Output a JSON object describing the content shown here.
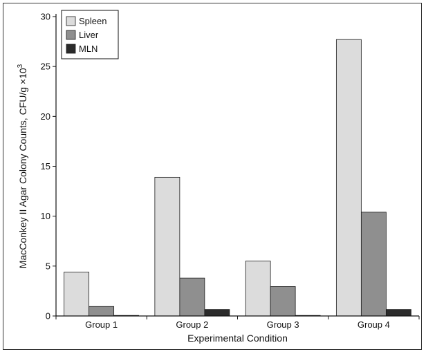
{
  "chart_data": {
    "type": "bar",
    "title": "",
    "xlabel": "Experimental Condition",
    "ylabel": "MacConkey II Agar Colony Counts, CFU/g ×10",
    "ylabel_superscript": "3",
    "ylim": [
      0,
      30
    ],
    "yticks": [
      "0",
      "5",
      "10",
      "15",
      "20",
      "25",
      "30"
    ],
    "categories": [
      "Group 1",
      "Group 2",
      "Group 3",
      "Group 4"
    ],
    "legend_position": "top-left",
    "grid": false,
    "series": [
      {
        "name": "Spleen",
        "color": "#dcdcdc",
        "values": [
          4.4,
          13.9,
          5.5,
          27.7
        ]
      },
      {
        "name": "Liver",
        "color": "#8f8f8f",
        "values": [
          0.95,
          3.8,
          2.95,
          10.4
        ]
      },
      {
        "name": "MLN",
        "color": "#2b2b2b",
        "values": [
          0.05,
          0.65,
          0.05,
          0.65
        ]
      }
    ]
  }
}
